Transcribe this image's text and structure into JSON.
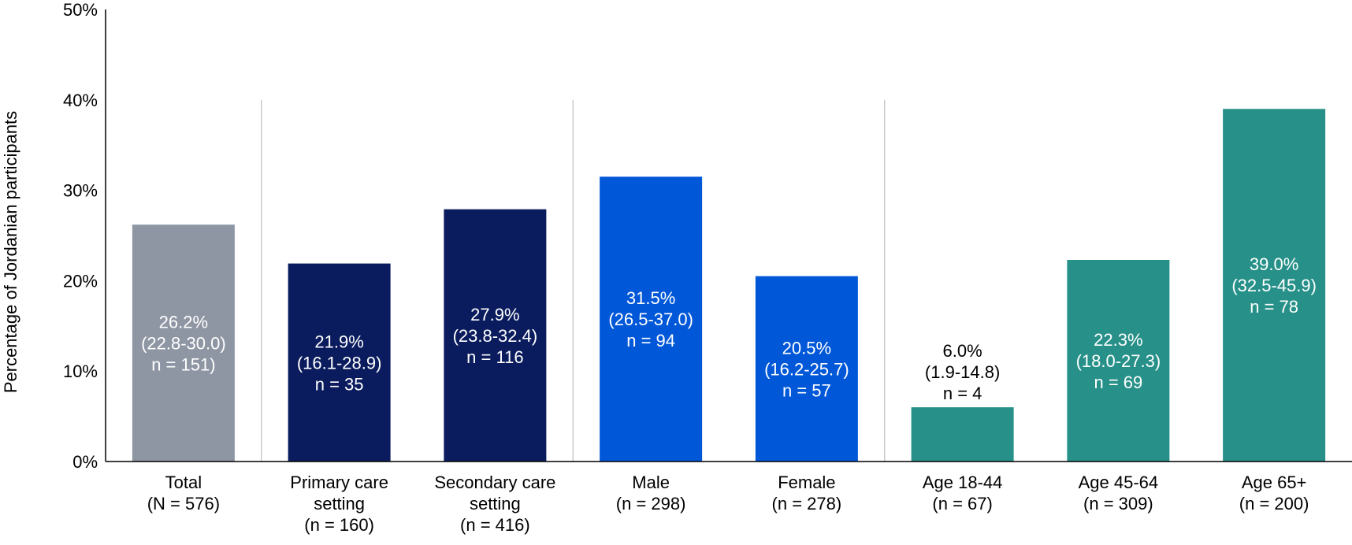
{
  "chart_data": {
    "type": "bar",
    "title": "",
    "xlabel": "",
    "ylabel": "Percentage of Jordanian participants",
    "ylim": [
      0,
      50
    ],
    "yticks": [
      "0%",
      "10%",
      "20%",
      "30%",
      "40%",
      "50%"
    ],
    "categories": [
      [
        "Total",
        "(N = 576)"
      ],
      [
        "Primary care",
        "setting",
        "(n = 160)"
      ],
      [
        "Secondary care",
        "setting",
        "(n = 416)"
      ],
      [
        "Male",
        "(n = 298)"
      ],
      [
        "Female",
        "(n = 278)"
      ],
      [
        "Age 18-44",
        "(n = 67)"
      ],
      [
        "Age 45-64",
        "(n = 309)"
      ],
      [
        "Age 65+",
        "(n = 200)"
      ]
    ],
    "values": [
      26.2,
      21.9,
      27.9,
      31.5,
      20.5,
      6.0,
      22.3,
      39.0
    ],
    "data_labels": [
      [
        "26.2%",
        "(22.8-30.0)",
        "n = 151)"
      ],
      [
        "21.9%",
        "(16.1-28.9)",
        "n = 35"
      ],
      [
        "27.9%",
        "(23.8-32.4)",
        "n = 116"
      ],
      [
        "31.5%",
        "(26.5-37.0)",
        "n = 94"
      ],
      [
        "20.5%",
        "(16.2-25.7)",
        "n = 57"
      ],
      [
        "6.0%",
        "(1.9-14.8)",
        "n = 4"
      ],
      [
        "22.3%",
        "(18.0-27.3)",
        "n = 69"
      ],
      [
        "39.0%",
        "(32.5-45.9)",
        "n = 78"
      ]
    ],
    "bar_colors": [
      "#8f96a3",
      "#0b1c5e",
      "#0b1c5e",
      "#0057d8",
      "#0057d8",
      "#279189",
      "#279189",
      "#279189"
    ],
    "label_colors": [
      "#ffffff",
      "#ffffff",
      "#ffffff",
      "#ffffff",
      "#ffffff",
      "#000000",
      "#ffffff",
      "#ffffff"
    ],
    "label_inside": [
      true,
      true,
      true,
      true,
      true,
      false,
      true,
      true
    ],
    "group_separators_after": [
      0,
      2,
      4
    ],
    "grid": false,
    "legend": "none"
  }
}
